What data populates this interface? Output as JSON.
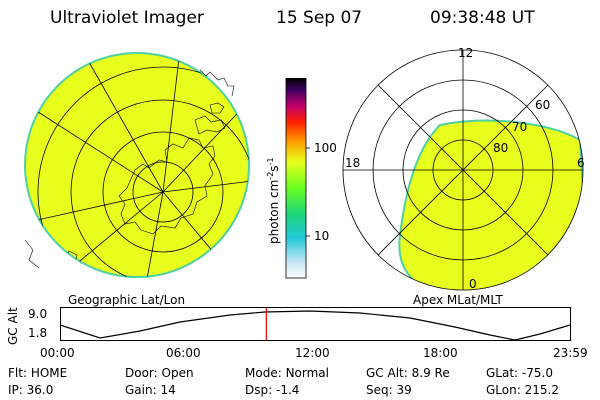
{
  "header": {
    "instrument": "Ultraviolet Imager",
    "date": "15 Sep 07",
    "time": "09:38:48 UT"
  },
  "colorbar": {
    "unit_label": "photon cm",
    "unit_sup1": "-2",
    "unit_mid": "s",
    "unit_sup2": "-1",
    "ticks": [
      "100",
      "10"
    ],
    "scale": "log"
  },
  "geo_map": {
    "caption": "Geographic Lat/Lon",
    "fill_color": "#e8ff1e"
  },
  "apex_map": {
    "caption": "Apex MLat/MLT",
    "mlt_labels": {
      "top": "12",
      "left": "18",
      "right": "6",
      "bottom": "0"
    },
    "mlat_labels": [
      "60",
      "70",
      "80"
    ],
    "fill_color": "#e8ff1e"
  },
  "altitude_plot": {
    "axis_title": "GC Alt",
    "y_ticks": [
      "9.0",
      "1.8"
    ],
    "x_ticks": [
      "00:00",
      "06:00",
      "12:00",
      "18:00",
      "23:59"
    ],
    "current_time_fraction": 0.4036
  },
  "info": {
    "row1": [
      {
        "key": "Flt:",
        "value": "HOME"
      },
      {
        "key": "Door:",
        "value": "Open"
      },
      {
        "key": "Mode:",
        "value": "Normal"
      },
      {
        "key": "GC Alt:",
        "value": "8.9 Re"
      },
      {
        "key": "GLat:",
        "value": "-75.0"
      }
    ],
    "row2": [
      {
        "key": "IP:",
        "value": "36.0"
      },
      {
        "key": "Gain:",
        "value": "14"
      },
      {
        "key": "Dsp:",
        "value": "-1.4"
      },
      {
        "key": "Seq:",
        "value": "39"
      },
      {
        "key": "GLon:",
        "value": "215.2"
      }
    ]
  }
}
